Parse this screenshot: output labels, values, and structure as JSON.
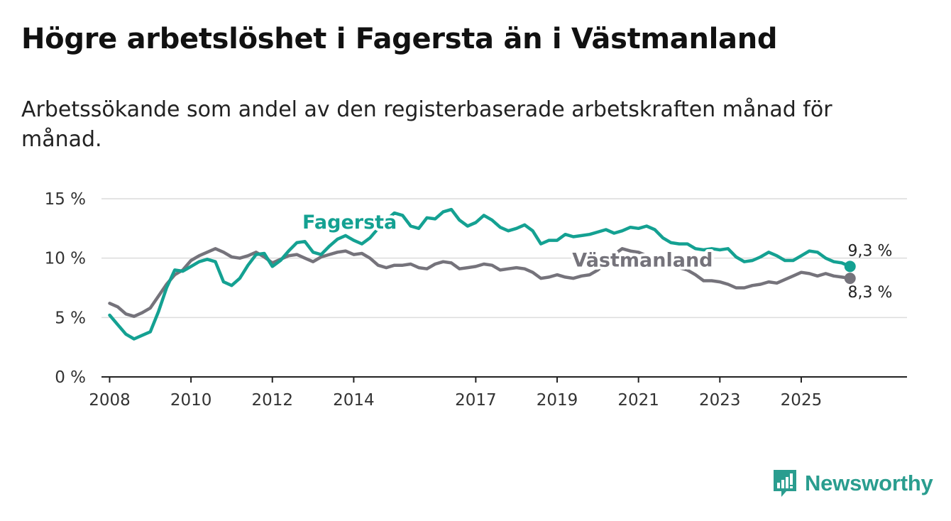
{
  "title": "Högre arbetslöshet i Fagersta än i Västmanland",
  "subtitle": "Arbetssökande som andel av den registerbaserade arbetskraften månad för månad.",
  "logo": {
    "text": "Newsworthy",
    "color": "#2a9d8f",
    "icon": "newsworthy-logo-icon"
  },
  "chart_data": {
    "type": "line",
    "title": "Högre arbetslöshet i Fagersta än i Västmanland",
    "xlabel": "",
    "ylabel": "",
    "xlim": [
      2007.8,
      2027.6
    ],
    "ylim": [
      0,
      15
    ],
    "yticks": [
      0,
      5,
      10,
      15
    ],
    "ytick_labels": [
      "0 %",
      "5 %",
      "10 %",
      "15 %"
    ],
    "xticks": [
      2008,
      2010,
      2012,
      2014,
      2017,
      2019,
      2021,
      2023,
      2025
    ],
    "xtick_labels": [
      "2008",
      "2010",
      "2012",
      "2014",
      "2017",
      "2019",
      "2021",
      "2023",
      "2025"
    ],
    "grid": true,
    "series": [
      {
        "name": "Fagersta",
        "color": "#14a192",
        "end_label": "9,3 %",
        "points": [
          [
            2008.0,
            5.2
          ],
          [
            2008.2,
            4.4
          ],
          [
            2008.4,
            3.6
          ],
          [
            2008.6,
            3.2
          ],
          [
            2008.8,
            3.5
          ],
          [
            2009.0,
            3.8
          ],
          [
            2009.2,
            5.5
          ],
          [
            2009.4,
            7.5
          ],
          [
            2009.6,
            9.0
          ],
          [
            2009.8,
            8.9
          ],
          [
            2010.0,
            9.3
          ],
          [
            2010.2,
            9.7
          ],
          [
            2010.4,
            9.9
          ],
          [
            2010.6,
            9.7
          ],
          [
            2010.8,
            8.0
          ],
          [
            2011.0,
            7.7
          ],
          [
            2011.2,
            8.3
          ],
          [
            2011.4,
            9.4
          ],
          [
            2011.6,
            10.3
          ],
          [
            2011.8,
            10.4
          ],
          [
            2012.0,
            9.3
          ],
          [
            2012.2,
            9.8
          ],
          [
            2012.4,
            10.6
          ],
          [
            2012.6,
            11.3
          ],
          [
            2012.8,
            11.4
          ],
          [
            2013.0,
            10.5
          ],
          [
            2013.2,
            10.3
          ],
          [
            2013.4,
            11.0
          ],
          [
            2013.6,
            11.6
          ],
          [
            2013.8,
            11.9
          ],
          [
            2014.0,
            11.5
          ],
          [
            2014.2,
            11.2
          ],
          [
            2014.4,
            11.7
          ],
          [
            2014.6,
            12.5
          ],
          [
            2014.8,
            13.2
          ],
          [
            2015.0,
            13.8
          ],
          [
            2015.2,
            13.6
          ],
          [
            2015.4,
            12.7
          ],
          [
            2015.6,
            12.5
          ],
          [
            2015.8,
            13.4
          ],
          [
            2016.0,
            13.3
          ],
          [
            2016.2,
            13.9
          ],
          [
            2016.4,
            14.1
          ],
          [
            2016.6,
            13.2
          ],
          [
            2016.8,
            12.7
          ],
          [
            2017.0,
            13.0
          ],
          [
            2017.2,
            13.6
          ],
          [
            2017.4,
            13.2
          ],
          [
            2017.6,
            12.6
          ],
          [
            2017.8,
            12.3
          ],
          [
            2018.0,
            12.5
          ],
          [
            2018.2,
            12.8
          ],
          [
            2018.4,
            12.3
          ],
          [
            2018.6,
            11.2
          ],
          [
            2018.8,
            11.5
          ],
          [
            2019.0,
            11.5
          ],
          [
            2019.2,
            12.0
          ],
          [
            2019.4,
            11.8
          ],
          [
            2019.6,
            11.9
          ],
          [
            2019.8,
            12.0
          ],
          [
            2020.0,
            12.2
          ],
          [
            2020.2,
            12.4
          ],
          [
            2020.4,
            12.1
          ],
          [
            2020.6,
            12.3
          ],
          [
            2020.8,
            12.6
          ],
          [
            2021.0,
            12.5
          ],
          [
            2021.2,
            12.7
          ],
          [
            2021.4,
            12.4
          ],
          [
            2021.6,
            11.7
          ],
          [
            2021.8,
            11.3
          ],
          [
            2022.0,
            11.2
          ],
          [
            2022.2,
            11.2
          ],
          [
            2022.4,
            10.8
          ],
          [
            2022.6,
            10.7
          ],
          [
            2022.8,
            10.8
          ],
          [
            2023.0,
            10.7
          ],
          [
            2023.2,
            10.8
          ],
          [
            2023.4,
            10.1
          ],
          [
            2023.6,
            9.7
          ],
          [
            2023.8,
            9.8
          ],
          [
            2024.0,
            10.1
          ],
          [
            2024.2,
            10.5
          ],
          [
            2024.4,
            10.2
          ],
          [
            2024.6,
            9.8
          ],
          [
            2024.8,
            9.8
          ],
          [
            2025.0,
            10.2
          ],
          [
            2025.2,
            10.6
          ],
          [
            2025.4,
            10.5
          ],
          [
            2025.6,
            10.0
          ],
          [
            2025.8,
            9.7
          ],
          [
            2026.0,
            9.6
          ],
          [
            2026.2,
            9.3
          ]
        ]
      },
      {
        "name": "Västmanland",
        "color": "#75737b",
        "end_label": "8,3 %",
        "points": [
          [
            2008.0,
            6.2
          ],
          [
            2008.2,
            5.9
          ],
          [
            2008.4,
            5.3
          ],
          [
            2008.6,
            5.1
          ],
          [
            2008.8,
            5.4
          ],
          [
            2009.0,
            5.8
          ],
          [
            2009.2,
            6.8
          ],
          [
            2009.4,
            7.8
          ],
          [
            2009.6,
            8.6
          ],
          [
            2009.8,
            9.0
          ],
          [
            2010.0,
            9.8
          ],
          [
            2010.2,
            10.2
          ],
          [
            2010.4,
            10.5
          ],
          [
            2010.6,
            10.8
          ],
          [
            2010.8,
            10.5
          ],
          [
            2011.0,
            10.1
          ],
          [
            2011.2,
            10.0
          ],
          [
            2011.4,
            10.2
          ],
          [
            2011.6,
            10.5
          ],
          [
            2011.8,
            10.1
          ],
          [
            2012.0,
            9.6
          ],
          [
            2012.2,
            9.9
          ],
          [
            2012.4,
            10.2
          ],
          [
            2012.6,
            10.3
          ],
          [
            2012.8,
            10.0
          ],
          [
            2013.0,
            9.7
          ],
          [
            2013.2,
            10.1
          ],
          [
            2013.4,
            10.3
          ],
          [
            2013.6,
            10.5
          ],
          [
            2013.8,
            10.6
          ],
          [
            2014.0,
            10.3
          ],
          [
            2014.2,
            10.4
          ],
          [
            2014.4,
            10.0
          ],
          [
            2014.6,
            9.4
          ],
          [
            2014.8,
            9.2
          ],
          [
            2015.0,
            9.4
          ],
          [
            2015.2,
            9.4
          ],
          [
            2015.4,
            9.5
          ],
          [
            2015.6,
            9.2
          ],
          [
            2015.8,
            9.1
          ],
          [
            2016.0,
            9.5
          ],
          [
            2016.2,
            9.7
          ],
          [
            2016.4,
            9.6
          ],
          [
            2016.6,
            9.1
          ],
          [
            2016.8,
            9.2
          ],
          [
            2017.0,
            9.3
          ],
          [
            2017.2,
            9.5
          ],
          [
            2017.4,
            9.4
          ],
          [
            2017.6,
            9.0
          ],
          [
            2017.8,
            9.1
          ],
          [
            2018.0,
            9.2
          ],
          [
            2018.2,
            9.1
          ],
          [
            2018.4,
            8.8
          ],
          [
            2018.6,
            8.3
          ],
          [
            2018.8,
            8.4
          ],
          [
            2019.0,
            8.6
          ],
          [
            2019.2,
            8.4
          ],
          [
            2019.4,
            8.3
          ],
          [
            2019.6,
            8.5
          ],
          [
            2019.8,
            8.6
          ],
          [
            2020.0,
            9.0
          ],
          [
            2020.2,
            9.6
          ],
          [
            2020.4,
            10.3
          ],
          [
            2020.6,
            10.8
          ],
          [
            2020.8,
            10.6
          ],
          [
            2021.0,
            10.5
          ],
          [
            2021.2,
            10.2
          ],
          [
            2021.4,
            9.8
          ],
          [
            2021.6,
            9.6
          ],
          [
            2021.8,
            9.4
          ],
          [
            2022.0,
            9.2
          ],
          [
            2022.2,
            9.0
          ],
          [
            2022.4,
            8.6
          ],
          [
            2022.6,
            8.1
          ],
          [
            2022.8,
            8.1
          ],
          [
            2023.0,
            8.0
          ],
          [
            2023.2,
            7.8
          ],
          [
            2023.4,
            7.5
          ],
          [
            2023.6,
            7.5
          ],
          [
            2023.8,
            7.7
          ],
          [
            2024.0,
            7.8
          ],
          [
            2024.2,
            8.0
          ],
          [
            2024.4,
            7.9
          ],
          [
            2024.6,
            8.2
          ],
          [
            2024.8,
            8.5
          ],
          [
            2025.0,
            8.8
          ],
          [
            2025.2,
            8.7
          ],
          [
            2025.4,
            8.5
          ],
          [
            2025.6,
            8.7
          ],
          [
            2025.8,
            8.5
          ],
          [
            2026.0,
            8.4
          ],
          [
            2026.2,
            8.3
          ]
        ]
      }
    ],
    "annotations": [
      {
        "text": "Fagersta",
        "series": "Fagersta",
        "x": 2013.9,
        "y": 12.5
      },
      {
        "text": "Västmanland",
        "series": "Västmanland",
        "x": 2021.1,
        "y": 9.3
      }
    ]
  }
}
